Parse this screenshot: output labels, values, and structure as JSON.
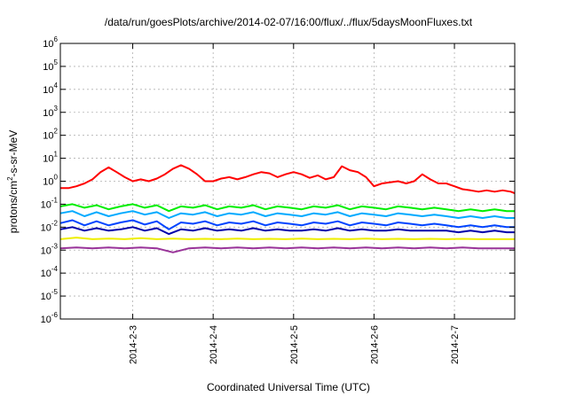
{
  "chart_data": {
    "type": "line",
    "title": "/data/run/goesPlots/archive/2014-02-07/16:00/flux/../flux/5daysMoonFluxes.txt",
    "xlabel": "Coordinated Universal Time (UTC)",
    "ylabel_base": "protons/cm",
    "ylabel_sup": "2",
    "ylabel_tail": "-s-sr-MeV",
    "y_scale": "log",
    "ylim": [
      1e-06,
      1000000.0
    ],
    "xlim": [
      2.1,
      7.75
    ],
    "grid": true,
    "x_tick_positions": [
      3,
      4,
      5,
      6,
      7
    ],
    "x_tick_labels": [
      "2014-2-3",
      "2014-2-4",
      "2014-2-5",
      "2014-2-6",
      "2014-2-7"
    ],
    "y_tick_exponents": [
      -6,
      -5,
      -4,
      -3,
      -2,
      -1,
      0,
      1,
      2,
      3,
      4,
      5,
      6
    ],
    "y_tick_base": "10",
    "series": [
      {
        "color": "#ff0000",
        "x": [
          2.1,
          2.2,
          2.3,
          2.4,
          2.5,
          2.6,
          2.7,
          2.8,
          2.9,
          3.0,
          3.1,
          3.2,
          3.3,
          3.4,
          3.5,
          3.6,
          3.7,
          3.8,
          3.9,
          4.0,
          4.1,
          4.2,
          4.3,
          4.4,
          4.5,
          4.6,
          4.7,
          4.8,
          4.9,
          5.0,
          5.1,
          5.2,
          5.3,
          5.4,
          5.5,
          5.6,
          5.7,
          5.8,
          5.9,
          6.0,
          6.1,
          6.2,
          6.3,
          6.4,
          6.5,
          6.6,
          6.7,
          6.8,
          6.9,
          7.0,
          7.1,
          7.2,
          7.3,
          7.4,
          7.5,
          7.6,
          7.7,
          7.75
        ],
        "values": [
          0.5,
          0.5,
          0.6,
          0.8,
          1.2,
          2.5,
          4.0,
          2.5,
          1.5,
          1.0,
          1.2,
          1.0,
          1.3,
          2.0,
          3.5,
          5.0,
          3.5,
          2.0,
          1.0,
          1.0,
          1.3,
          1.5,
          1.2,
          1.5,
          2.0,
          2.5,
          2.2,
          1.5,
          2.0,
          2.5,
          2.0,
          1.4,
          1.8,
          1.2,
          1.5,
          4.5,
          3.0,
          2.5,
          1.5,
          0.6,
          0.8,
          0.9,
          1.0,
          0.8,
          1.0,
          2.0,
          1.2,
          0.8,
          0.8,
          0.6,
          0.45,
          0.4,
          0.35,
          0.4,
          0.35,
          0.4,
          0.35,
          0.3
        ]
      },
      {
        "color": "#00ee00",
        "x": [
          2.1,
          2.25,
          2.4,
          2.55,
          2.7,
          2.85,
          3.0,
          3.15,
          3.3,
          3.45,
          3.6,
          3.75,
          3.9,
          4.05,
          4.2,
          4.35,
          4.5,
          4.65,
          4.8,
          4.95,
          5.1,
          5.25,
          5.4,
          5.55,
          5.7,
          5.85,
          6.0,
          6.15,
          6.3,
          6.45,
          6.6,
          6.75,
          6.9,
          7.05,
          7.2,
          7.35,
          7.5,
          7.65,
          7.75
        ],
        "values": [
          0.08,
          0.1,
          0.07,
          0.09,
          0.06,
          0.08,
          0.1,
          0.07,
          0.09,
          0.05,
          0.08,
          0.07,
          0.09,
          0.06,
          0.08,
          0.07,
          0.09,
          0.06,
          0.08,
          0.07,
          0.06,
          0.08,
          0.07,
          0.09,
          0.06,
          0.08,
          0.07,
          0.06,
          0.08,
          0.07,
          0.06,
          0.07,
          0.06,
          0.05,
          0.06,
          0.05,
          0.06,
          0.05,
          0.05
        ]
      },
      {
        "color": "#00aaff",
        "x": [
          2.1,
          2.25,
          2.4,
          2.55,
          2.7,
          2.85,
          3.0,
          3.15,
          3.3,
          3.45,
          3.6,
          3.75,
          3.9,
          4.05,
          4.2,
          4.35,
          4.5,
          4.65,
          4.8,
          4.95,
          5.1,
          5.25,
          5.4,
          5.55,
          5.7,
          5.85,
          6.0,
          6.15,
          6.3,
          6.45,
          6.6,
          6.75,
          6.9,
          7.05,
          7.2,
          7.35,
          7.5,
          7.65,
          7.75
        ],
        "values": [
          0.04,
          0.05,
          0.03,
          0.045,
          0.03,
          0.04,
          0.05,
          0.035,
          0.045,
          0.025,
          0.04,
          0.035,
          0.045,
          0.03,
          0.04,
          0.035,
          0.045,
          0.03,
          0.04,
          0.035,
          0.03,
          0.04,
          0.035,
          0.045,
          0.03,
          0.04,
          0.035,
          0.03,
          0.04,
          0.035,
          0.03,
          0.035,
          0.03,
          0.025,
          0.03,
          0.025,
          0.03,
          0.025,
          0.025
        ]
      },
      {
        "color": "#0044ff",
        "x": [
          2.1,
          2.25,
          2.4,
          2.55,
          2.7,
          2.85,
          3.0,
          3.15,
          3.3,
          3.45,
          3.6,
          3.75,
          3.9,
          4.05,
          4.2,
          4.35,
          4.5,
          4.65,
          4.8,
          4.95,
          5.1,
          5.25,
          5.4,
          5.55,
          5.7,
          5.85,
          6.0,
          6.15,
          6.3,
          6.45,
          6.6,
          6.75,
          6.9,
          7.05,
          7.2,
          7.35,
          7.5,
          7.65,
          7.75
        ],
        "values": [
          0.015,
          0.02,
          0.012,
          0.018,
          0.012,
          0.016,
          0.02,
          0.013,
          0.018,
          0.008,
          0.016,
          0.014,
          0.018,
          0.012,
          0.016,
          0.014,
          0.018,
          0.012,
          0.016,
          0.014,
          0.012,
          0.016,
          0.014,
          0.018,
          0.012,
          0.016,
          0.014,
          0.012,
          0.016,
          0.014,
          0.012,
          0.014,
          0.012,
          0.01,
          0.012,
          0.01,
          0.012,
          0.01,
          0.01
        ]
      },
      {
        "color": "#0000aa",
        "x": [
          2.1,
          2.25,
          2.4,
          2.55,
          2.7,
          2.85,
          3.0,
          3.15,
          3.3,
          3.45,
          3.6,
          3.75,
          3.9,
          4.05,
          4.2,
          4.35,
          4.5,
          4.65,
          4.8,
          4.95,
          5.1,
          5.25,
          5.4,
          5.55,
          5.7,
          5.85,
          6.0,
          6.15,
          6.3,
          6.45,
          6.6,
          6.75,
          6.9,
          7.05,
          7.2,
          7.35,
          7.5,
          7.65,
          7.75
        ],
        "values": [
          0.008,
          0.01,
          0.007,
          0.009,
          0.007,
          0.008,
          0.01,
          0.007,
          0.009,
          0.005,
          0.008,
          0.007,
          0.009,
          0.007,
          0.008,
          0.007,
          0.009,
          0.007,
          0.008,
          0.007,
          0.007,
          0.008,
          0.007,
          0.009,
          0.007,
          0.008,
          0.007,
          0.007,
          0.008,
          0.007,
          0.007,
          0.007,
          0.007,
          0.006,
          0.007,
          0.006,
          0.007,
          0.006,
          0.006
        ]
      },
      {
        "color": "#eeee00",
        "x": [
          2.1,
          2.3,
          2.5,
          2.7,
          2.9,
          3.1,
          3.3,
          3.5,
          3.7,
          3.9,
          4.1,
          4.3,
          4.5,
          4.7,
          4.9,
          5.1,
          5.3,
          5.5,
          5.7,
          5.9,
          6.1,
          6.3,
          6.5,
          6.7,
          6.9,
          7.1,
          7.3,
          7.5,
          7.75
        ],
        "values": [
          0.003,
          0.0035,
          0.003,
          0.0032,
          0.003,
          0.0033,
          0.003,
          0.0032,
          0.003,
          0.0031,
          0.003,
          0.0032,
          0.003,
          0.0031,
          0.003,
          0.0032,
          0.003,
          0.0031,
          0.003,
          0.0032,
          0.003,
          0.0031,
          0.003,
          0.0031,
          0.003,
          0.0031,
          0.003,
          0.003,
          0.003
        ]
      },
      {
        "color": "#993399",
        "x": [
          2.1,
          2.3,
          2.5,
          2.7,
          2.9,
          3.1,
          3.3,
          3.5,
          3.7,
          3.9,
          4.1,
          4.3,
          4.5,
          4.7,
          4.9,
          5.1,
          5.3,
          5.5,
          5.7,
          5.9,
          6.1,
          6.3,
          6.5,
          6.7,
          6.9,
          7.1,
          7.3,
          7.5,
          7.75
        ],
        "values": [
          0.0012,
          0.0013,
          0.0012,
          0.0013,
          0.0012,
          0.0013,
          0.0012,
          0.0008,
          0.0012,
          0.0013,
          0.0012,
          0.0013,
          0.0012,
          0.0013,
          0.0012,
          0.0013,
          0.0012,
          0.0013,
          0.0012,
          0.0013,
          0.0012,
          0.0013,
          0.0012,
          0.0013,
          0.0012,
          0.0013,
          0.0012,
          0.0012,
          0.0012
        ]
      }
    ]
  }
}
